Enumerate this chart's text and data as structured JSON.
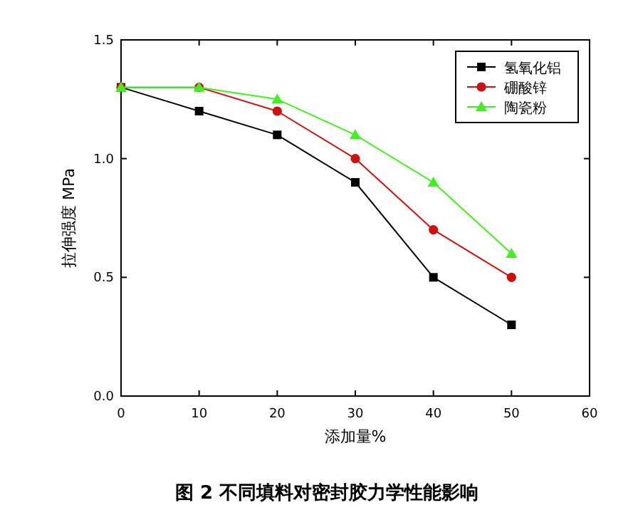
{
  "chart_data": {
    "type": "line",
    "title": "图 2 不同填料对密封胶力学性能影响",
    "xlabel": "添加量%",
    "ylabel": "拉伸强度 MPa",
    "x": [
      0,
      10,
      20,
      30,
      40,
      50
    ],
    "series": [
      {
        "name": "氢氧化铝",
        "color": "#000000",
        "marker": "square",
        "values": [
          1.3,
          1.2,
          1.1,
          0.9,
          0.5,
          0.3
        ]
      },
      {
        "name": "硼酸锌",
        "color": "#cc1111",
        "marker": "circle",
        "values": [
          1.3,
          1.3,
          1.2,
          1.0,
          0.7,
          0.5
        ]
      },
      {
        "name": "陶瓷粉",
        "color": "#44ee22",
        "marker": "triangle",
        "values": [
          1.3,
          1.3,
          1.25,
          1.1,
          0.9,
          0.6
        ]
      }
    ],
    "xlim": [
      0,
      60
    ],
    "xticks": [
      0,
      10,
      20,
      30,
      40,
      50,
      60
    ],
    "ylim": [
      0,
      1.5
    ],
    "yticks": [
      {
        "value": 0,
        "label": "0.0"
      },
      {
        "value": 0.5,
        "label": "0.5"
      },
      {
        "value": 1,
        "label": "1.0"
      },
      {
        "value": 1.5,
        "label": "1.5"
      }
    ],
    "grid": false,
    "legend": "top right"
  }
}
